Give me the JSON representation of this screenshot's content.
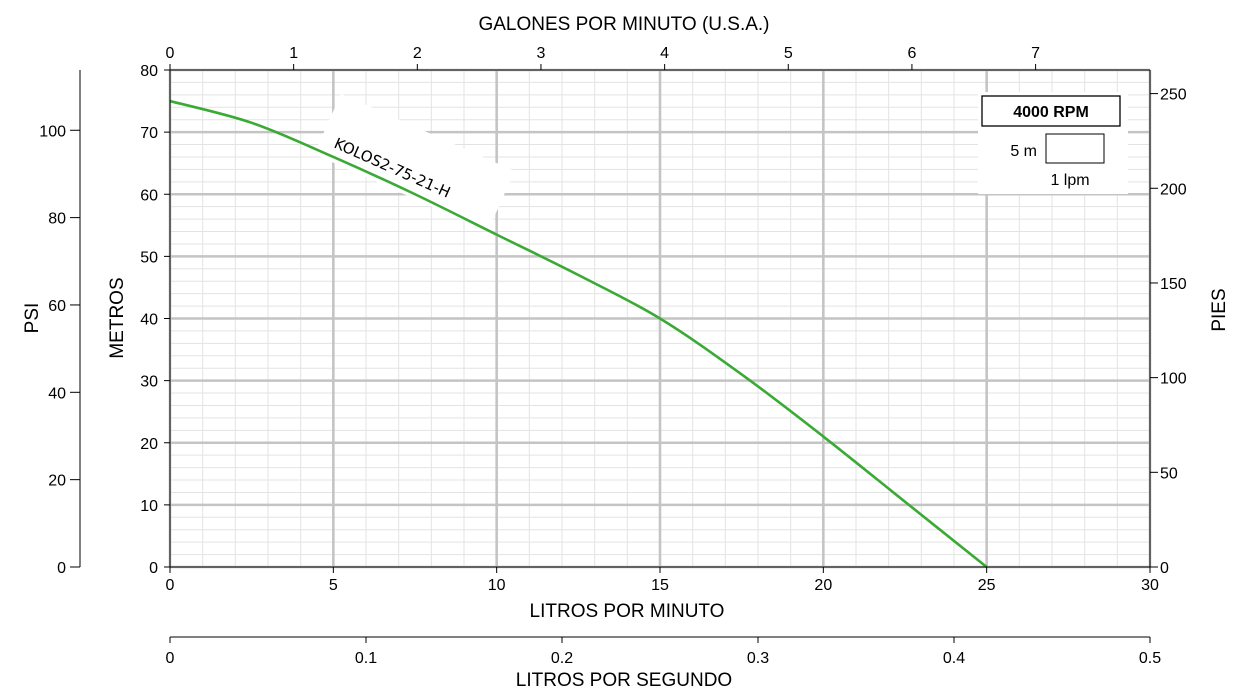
{
  "chart_data": {
    "type": "line",
    "title": "",
    "rpm_label": "4000 RPM",
    "scale_legend": {
      "vertical_label": "5 m",
      "horizontal_label": "1 lpm"
    },
    "axes": {
      "bottom": {
        "label": "LITROS POR MINUTO",
        "range": [
          0,
          30
        ],
        "ticks": [
          0,
          5,
          10,
          15,
          20,
          25,
          30
        ],
        "tick_labels": [
          "0",
          "5",
          "10",
          "15",
          "20",
          "25",
          "30"
        ]
      },
      "top": {
        "label": "GALONES POR MINUTO (U.S.A.)",
        "tick_labels": [
          "0",
          "1",
          "2",
          "3",
          "4",
          "5",
          "6",
          "7"
        ],
        "ticks_lpm": [
          0,
          3.785,
          7.571,
          11.356,
          15.142,
          18.927,
          22.712,
          26.498
        ]
      },
      "left_inner": {
        "label": "METROS",
        "range": [
          0,
          80
        ],
        "ticks": [
          0,
          10,
          20,
          30,
          40,
          50,
          60,
          70,
          80
        ],
        "tick_labels": [
          "0",
          "10",
          "20",
          "30",
          "40",
          "50",
          "60",
          "70",
          "80"
        ]
      },
      "left_outer": {
        "label": "PSI",
        "tick_labels": [
          "0",
          "20",
          "40",
          "60",
          "80",
          "100"
        ],
        "ticks_m": [
          0,
          14.06,
          28.12,
          42.18,
          56.24,
          70.3
        ]
      },
      "right": {
        "label": "PIES",
        "tick_labels": [
          "0",
          "50",
          "100",
          "150",
          "200",
          "250"
        ],
        "ticks_m": [
          0,
          15.24,
          30.48,
          45.72,
          60.96,
          76.2
        ]
      },
      "bottom2": {
        "label": "LITROS POR SEGUNDO",
        "tick_labels": [
          "0",
          "0.1",
          "0.2",
          "0.3",
          "0.4",
          "0.5"
        ],
        "ticks_lpm": [
          0,
          6,
          12,
          18,
          24,
          30
        ]
      }
    },
    "grid": true,
    "series": [
      {
        "name": "KOLOS2-75-21-H",
        "color": "#3aaa35",
        "x": [
          0,
          2.5,
          5,
          7.5,
          10,
          12.5,
          15,
          17.5,
          20,
          22.5,
          25
        ],
        "y": [
          75,
          71.5,
          66,
          60,
          53.5,
          47,
          40,
          31,
          21,
          10.5,
          0
        ]
      }
    ]
  }
}
